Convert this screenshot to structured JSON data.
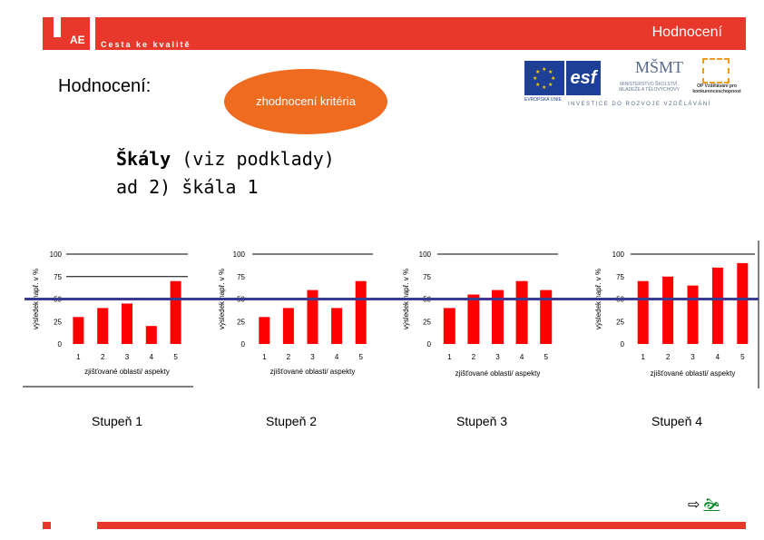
{
  "header": {
    "logo_text": "AE",
    "tagline": "Cesta ke kvalitě",
    "title": "Hodnocení"
  },
  "slide": {
    "heading": "Hodnocení:",
    "ellipse_text": "zhodnocení kritéria",
    "scales_bold": "Škály",
    "scales_rest": " (viz podklady)",
    "scales_line2": "ad 2) škála 1"
  },
  "logos": {
    "eu_label": "EVROPSKÁ UNIE",
    "esf_label": "esf",
    "msmt_mark": "MŠMT",
    "msmt_label": "MINISTERSTVO ŠKOLSTVÍ, MLÁDEŽE A TĚLOVÝCHOVY",
    "opvk_label": "OP Vzdělávání pro konkurenceschopnost",
    "invest_text": "INVESTICE DO ROZVOJE VZDĚLÁVÁNÍ"
  },
  "colors": {
    "brand_red": "#e8382b",
    "bar_red": "#ff0000",
    "threshold_line": "#3b3b8f",
    "ellipse_orange": "#ef6b20"
  },
  "chart_data": [
    {
      "type": "bar",
      "categories": [
        "1",
        "2",
        "3",
        "4",
        "5"
      ],
      "values": [
        30,
        40,
        45,
        20,
        70
      ],
      "ylabel": "výsledek např. v %",
      "xlabel": "zjišťované oblasti/ aspekty",
      "ylim": [
        0,
        100
      ],
      "yticks": [
        "0",
        "25",
        "50",
        "75",
        "100"
      ],
      "caption": "Stupeň 1",
      "threshold": 50
    },
    {
      "type": "bar",
      "categories": [
        "1",
        "2",
        "3",
        "4",
        "5"
      ],
      "values": [
        30,
        40,
        60,
        40,
        70
      ],
      "ylabel": "výsledek např. v %",
      "xlabel": "zjišťované oblasti/ aspekty",
      "ylim": [
        0,
        100
      ],
      "yticks": [
        "0",
        "25",
        "50",
        "75",
        "100"
      ],
      "caption": "Stupeň 2",
      "threshold": 50
    },
    {
      "type": "bar",
      "categories": [
        "1",
        "2",
        "3",
        "4",
        "5"
      ],
      "values": [
        40,
        55,
        60,
        70,
        60
      ],
      "ylabel": "výsledek např. v %",
      "xlabel": "zjišťované oblasti/ aspekty",
      "ylim": [
        0,
        100
      ],
      "yticks": [
        "0",
        "25",
        "50",
        "75",
        "100"
      ],
      "caption": "Stupeň 3",
      "threshold": 50
    },
    {
      "type": "bar",
      "categories": [
        "1",
        "2",
        "3",
        "4",
        "5"
      ],
      "values": [
        70,
        75,
        65,
        85,
        90
      ],
      "ylabel": "výsledek např. v %",
      "xlabel": "zjišťované oblasti/ aspekty",
      "ylim": [
        0,
        100
      ],
      "yticks": [
        "0",
        "25",
        "50",
        "75",
        "100"
      ],
      "caption": "Stupeň 4",
      "threshold": 50
    }
  ],
  "nav": {
    "arrow": "⇨",
    "icon": "🙞"
  }
}
